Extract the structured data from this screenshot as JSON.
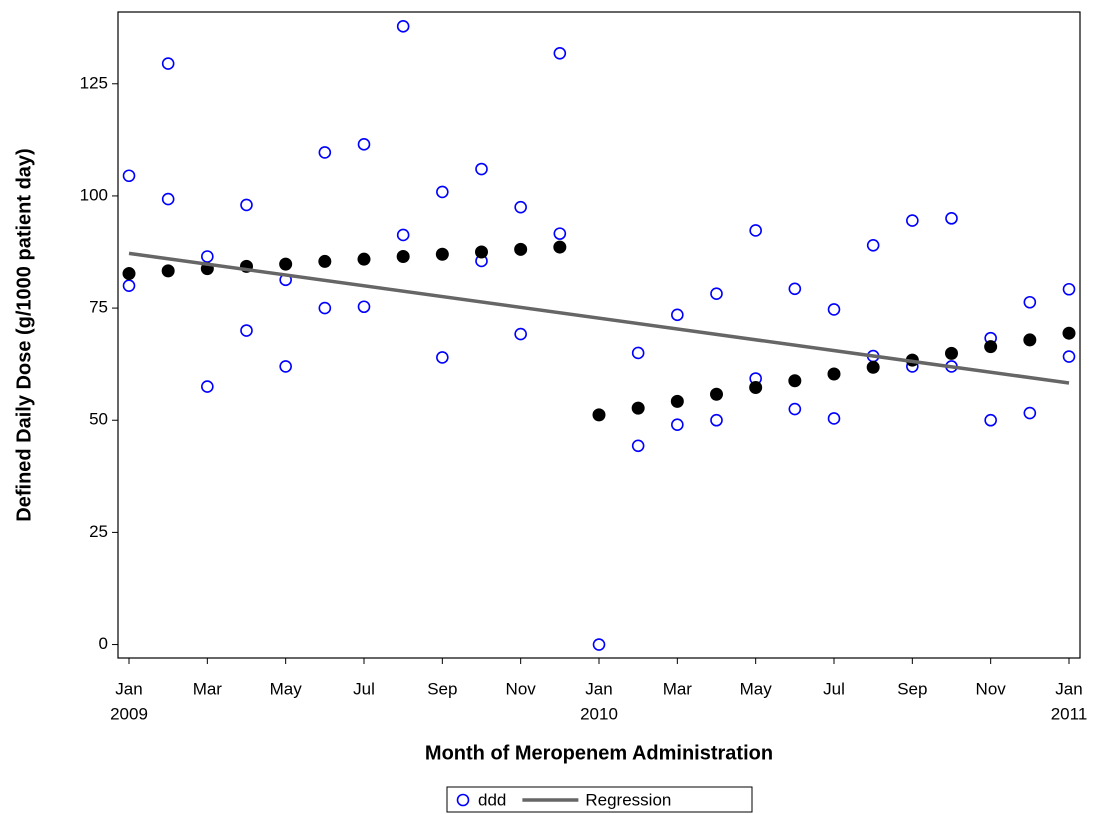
{
  "chart_data": {
    "type": "scatter",
    "xlabel": "Month of Meropenem Administration",
    "ylabel": "Defined Daily Dose (g/1000 patient day)",
    "xlim": [
      "2009-01",
      "2011-01"
    ],
    "xticks": [
      {
        "value": "2009-01",
        "label": [
          "Jan",
          "2009"
        ]
      },
      {
        "value": "2009-03",
        "label": [
          "Mar"
        ]
      },
      {
        "value": "2009-05",
        "label": [
          "May"
        ]
      },
      {
        "value": "2009-07",
        "label": [
          "Jul"
        ]
      },
      {
        "value": "2009-09",
        "label": [
          "Sep"
        ]
      },
      {
        "value": "2009-11",
        "label": [
          "Nov"
        ]
      },
      {
        "value": "2010-01",
        "label": [
          "Jan",
          "2010"
        ]
      },
      {
        "value": "2010-03",
        "label": [
          "Mar"
        ]
      },
      {
        "value": "2010-05",
        "label": [
          "May"
        ]
      },
      {
        "value": "2010-07",
        "label": [
          "Jul"
        ]
      },
      {
        "value": "2010-09",
        "label": [
          "Sep"
        ]
      },
      {
        "value": "2010-11",
        "label": [
          "Nov"
        ]
      },
      {
        "value": "2011-01",
        "label": [
          "Jan",
          "2011"
        ]
      }
    ],
    "ylim": [
      -3,
      141
    ],
    "yticks": [
      0,
      25,
      50,
      75,
      100,
      125
    ],
    "legend": "bottom",
    "series": [
      {
        "name": "ddd",
        "color": "#0000ff",
        "marker": "open-circle",
        "x": [
          "2009-01",
          "2009-01",
          "2009-02",
          "2009-02",
          "2009-03",
          "2009-03",
          "2009-04",
          "2009-04",
          "2009-05",
          "2009-05",
          "2009-06",
          "2009-06",
          "2009-07",
          "2009-07",
          "2009-08",
          "2009-08",
          "2009-09",
          "2009-09",
          "2009-10",
          "2009-10",
          "2009-11",
          "2009-11",
          "2009-12",
          "2009-12",
          "2010-01",
          "2010-02",
          "2010-02",
          "2010-03",
          "2010-03",
          "2010-04",
          "2010-04",
          "2010-05",
          "2010-05",
          "2010-06",
          "2010-06",
          "2010-07",
          "2010-07",
          "2010-08",
          "2010-08",
          "2010-09",
          "2010-09",
          "2010-10",
          "2010-10",
          "2010-11",
          "2010-11",
          "2010-12",
          "2010-12",
          "2011-01",
          "2011-01"
        ],
        "values": [
          104.5,
          80,
          129.5,
          99.3,
          86.5,
          57.5,
          98,
          70,
          81.3,
          62,
          109.7,
          75,
          111.5,
          75.3,
          137.8,
          91.3,
          100.9,
          64,
          106,
          85.5,
          97.5,
          69.2,
          131.8,
          91.6,
          0,
          65,
          44.3,
          73.5,
          49,
          78.2,
          50,
          92.3,
          59.3,
          79.3,
          52.5,
          74.7,
          50.4,
          89,
          64.3,
          94.5,
          62,
          95,
          62,
          68.3,
          50,
          76.3,
          51.6,
          79.2,
          64.2
        ]
      },
      {
        "color": "#000000",
        "marker": "filled-circle",
        "x": [
          "2009-01",
          "2009-02",
          "2009-03",
          "2009-04",
          "2009-05",
          "2009-06",
          "2009-07",
          "2009-08",
          "2009-09",
          "2009-10",
          "2009-11",
          "2009-12",
          "2010-01",
          "2010-02",
          "2010-03",
          "2010-04",
          "2010-05",
          "2010-06",
          "2010-07",
          "2010-08",
          "2010-09",
          "2010-10",
          "2010-11",
          "2010-12",
          "2011-01"
        ],
        "values": [
          82.7,
          83.3,
          83.8,
          84.3,
          84.8,
          85.4,
          85.9,
          86.5,
          87,
          87.5,
          88.1,
          88.6,
          51.2,
          52.7,
          54.2,
          55.8,
          57.3,
          58.8,
          60.3,
          61.8,
          63.4,
          64.9,
          66.4,
          67.9,
          69.4
        ]
      },
      {
        "name": "Regression",
        "type": "line",
        "color": "#666666",
        "x": [
          "2009-01",
          "2011-01"
        ],
        "values": [
          87.2,
          58.3
        ]
      }
    ]
  }
}
